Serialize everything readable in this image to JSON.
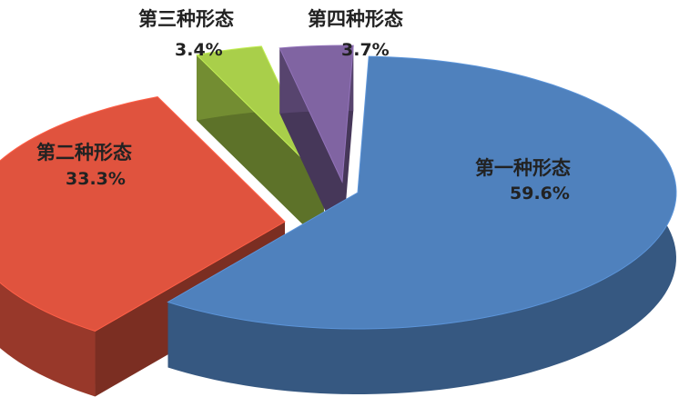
{
  "chart_data": {
    "type": "pie",
    "style": "3d-exploded",
    "categories": [
      "第一种形态",
      "第二种形态",
      "第三种形态",
      "第四种形态"
    ],
    "values": [
      59.6,
      33.3,
      3.4,
      3.7
    ],
    "value_labels": [
      "59.6%",
      "33.3%",
      "3.4%",
      "3.7%"
    ],
    "colors": [
      "#4f81bd",
      "#e0533e",
      "#a9cf4a",
      "#8064a2"
    ],
    "legend": "none"
  }
}
